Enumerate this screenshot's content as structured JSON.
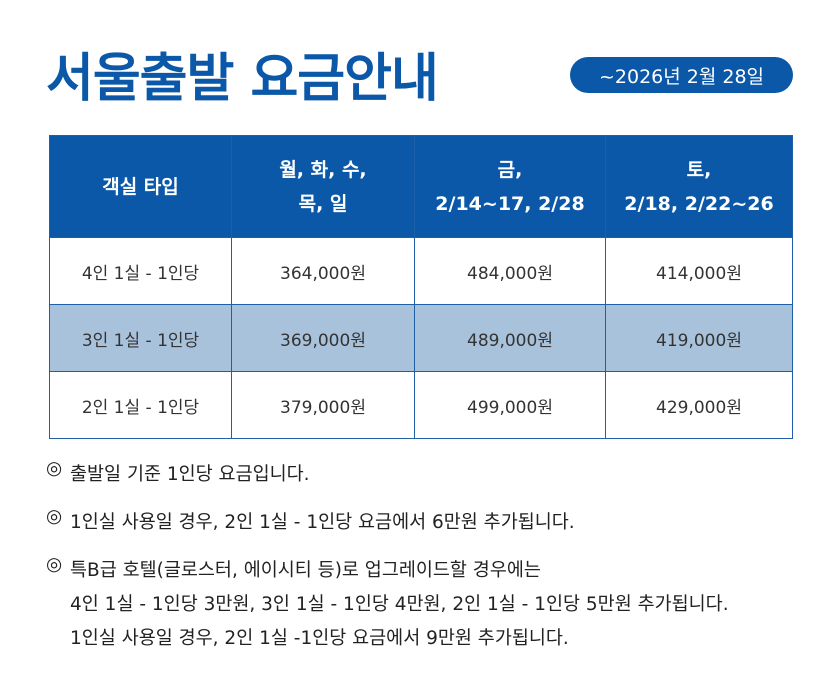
{
  "header": {
    "title": "서울출발 요금안내",
    "badge": "~2026년 2월 28일"
  },
  "table": {
    "headers": [
      [
        "객실 타입"
      ],
      [
        "월, 화, 수,",
        "목, 일"
      ],
      [
        "금,",
        "2/14~17, 2/28"
      ],
      [
        "토,",
        "2/18, 2/22~26"
      ]
    ],
    "rows": [
      [
        "4인 1실 - 1인당",
        "364,000원",
        "484,000원",
        "414,000원"
      ],
      [
        "3인 1실 - 1인당",
        "369,000원",
        "489,000원",
        "419,000원"
      ],
      [
        "2인 1실 - 1인당",
        "379,000원",
        "499,000원",
        "429,000원"
      ]
    ]
  },
  "notes": {
    "marker": "◎",
    "items": [
      [
        "출발일 기준 1인당 요금입니다."
      ],
      [
        "1인실 사용일 경우, 2인 1실 - 1인당 요금에서 6만원 추가됩니다."
      ],
      [
        "특B급 호텔(글로스터, 에이시티 등)로 업그레이드할 경우에는",
        "4인 1실 - 1인당 3만원, 3인 1실 - 1인당 4만원, 2인 1실 - 1인당 5만원 추가됩니다.",
        "1인실 사용일 경우, 2인 1실 -1인당 요금에서 9만원 추가됩니다."
      ]
    ]
  }
}
